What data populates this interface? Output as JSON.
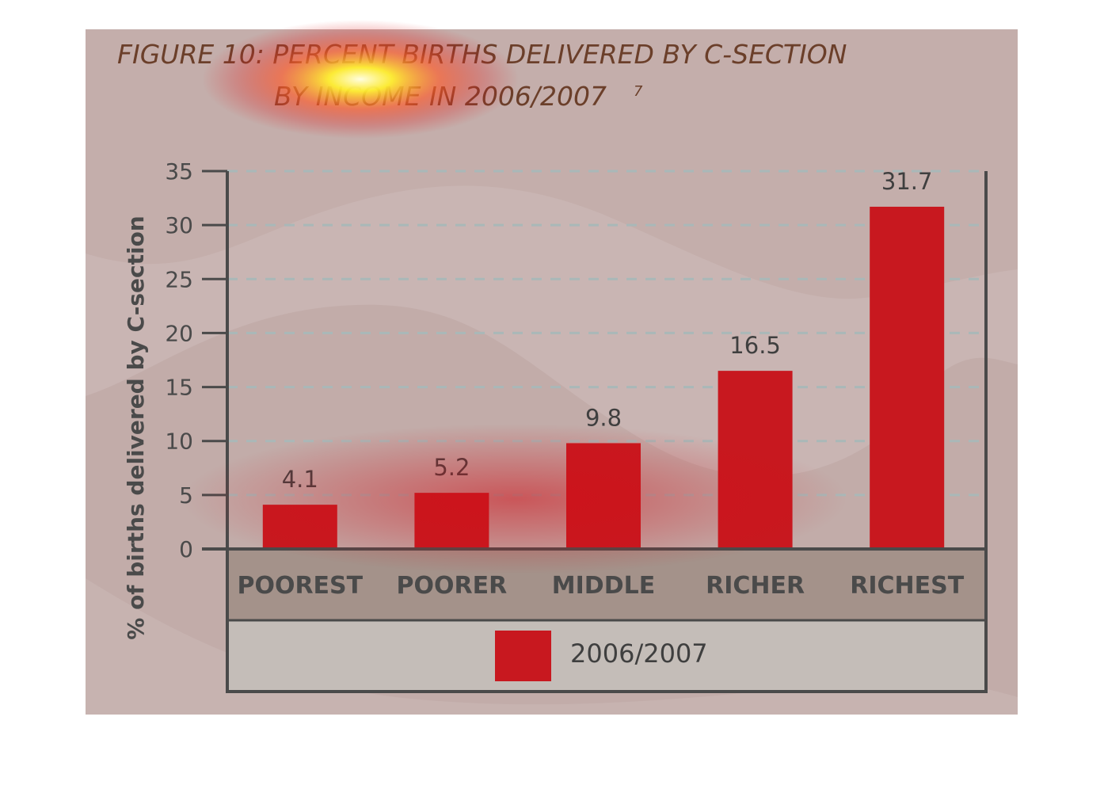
{
  "colors": {
    "panel_bg": "#c4aeab",
    "bar": "#c8181f",
    "axis": "#4a4a4a",
    "category_band": "#a4928a",
    "legend_band": "#c4bdb8",
    "title": "#6b3f2a"
  },
  "chart_data": {
    "type": "bar",
    "title_line1": "FIGURE 10: PERCENT BIRTHS DELIVERED BY C-SECTION",
    "title_line2": "BY INCOME IN 2006/2007",
    "title_superscript": "7",
    "xlabel": "",
    "ylabel": "% of births delivered by C-section",
    "ylim": [
      0,
      35
    ],
    "yticks": [
      0,
      5,
      10,
      15,
      20,
      25,
      30,
      35
    ],
    "grid": true,
    "categories": [
      "POOREST",
      "POORER",
      "MIDDLE",
      "RICHER",
      "RICHEST"
    ],
    "series": [
      {
        "name": "2006/2007",
        "values": [
          4.1,
          5.2,
          9.8,
          16.5,
          31.7
        ]
      }
    ],
    "value_labels": [
      "4.1",
      "5.2",
      "9.8",
      "16.5",
      "31.7"
    ],
    "legend_position": "bottom"
  }
}
